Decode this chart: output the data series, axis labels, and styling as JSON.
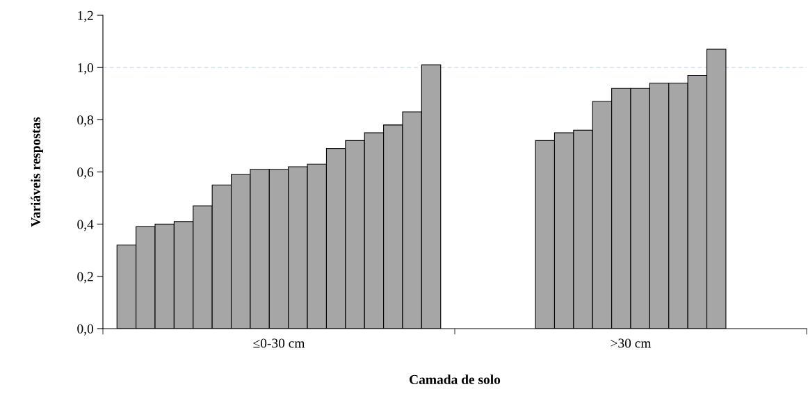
{
  "chart_data": {
    "type": "bar",
    "xlabel": "Camada de solo",
    "ylabel": "Variáveis respostas",
    "categories": [
      "≤0-30 cm",
      ">30 cm"
    ],
    "series": [
      {
        "color": "#a6a6a6",
        "values": [
          0.32,
          0.72
        ]
      },
      {
        "color": "#a6a6a6",
        "values": [
          0.39,
          0.75
        ]
      },
      {
        "color": "#a6a6a6",
        "values": [
          0.4,
          0.76
        ]
      },
      {
        "color": "#a6a6a6",
        "values": [
          0.41,
          0.87
        ]
      },
      {
        "color": "#a6a6a6",
        "values": [
          0.47,
          0.92
        ]
      },
      {
        "color": "#a6a6a6",
        "values": [
          0.55,
          0.92
        ]
      },
      {
        "color": "#a6a6a6",
        "values": [
          0.59,
          0.94
        ]
      },
      {
        "color": "#a6a6a6",
        "values": [
          0.61,
          0.94
        ]
      },
      {
        "color": "#a6a6a6",
        "values": [
          0.61,
          0.97
        ]
      },
      {
        "color": "#a6a6a6",
        "values": [
          0.62,
          1.07
        ]
      },
      {
        "color": "#a6a6a6",
        "values": [
          0.63,
          null
        ]
      },
      {
        "color": "#a6a6a6",
        "values": [
          0.69,
          null
        ]
      },
      {
        "color": "#a6a6a6",
        "values": [
          0.72,
          null
        ]
      },
      {
        "color": "#a6a6a6",
        "values": [
          0.75,
          null
        ]
      },
      {
        "color": "#a6a6a6",
        "values": [
          0.78,
          null
        ]
      },
      {
        "color": "#a6a6a6",
        "values": [
          0.83,
          null
        ]
      },
      {
        "color": "#a6a6a6",
        "values": [
          1.01,
          null
        ]
      }
    ],
    "ylim": [
      0,
      1.2
    ],
    "yticks": [
      {
        "value": 0,
        "label": "0,0"
      },
      {
        "value": 0.2,
        "label": "0,2"
      },
      {
        "value": 0.4,
        "label": "0,4"
      },
      {
        "value": 0.6,
        "label": "0,6"
      },
      {
        "value": 0.8,
        "label": "0,8"
      },
      {
        "value": 1.0,
        "label": "1,0"
      },
      {
        "value": 1.2,
        "label": "1,2"
      }
    ],
    "ref_lines": [
      {
        "axis": "y",
        "value": 1.0,
        "color": "#c6d9f1",
        "line_style": "dashed"
      }
    ],
    "grid": false,
    "legend": false
  }
}
